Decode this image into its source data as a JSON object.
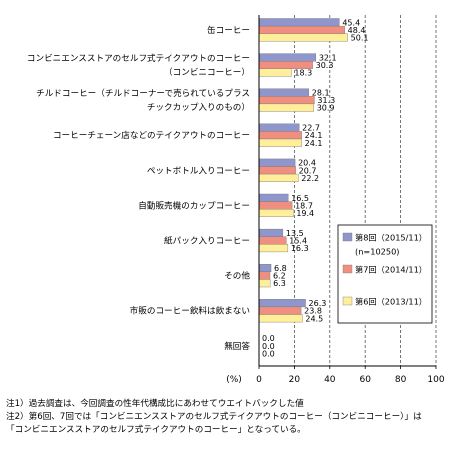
{
  "chart_data": {
    "type": "bar",
    "orientation": "horizontal",
    "categories": [
      [
        "缶コーヒー"
      ],
      [
        "コンビニエンスストアのセルフ式テイクアウトのコーヒー",
        "（コンビニコーヒー）"
      ],
      [
        "チルドコーヒー（チルドコーナーで売られているプラス",
        "チックカップ入りのもの）"
      ],
      [
        "コーヒーチェーン店などのテイクアウトのコーヒー"
      ],
      [
        "ペットボトル入りコーヒー"
      ],
      [
        "自動販売機のカップコーヒー"
      ],
      [
        "紙パック入りコーヒー"
      ],
      [
        "その他"
      ],
      [
        "市販のコーヒー飲料は飲まない"
      ],
      [
        "無回答"
      ]
    ],
    "series": [
      {
        "name": "第8回（2015/11）",
        "values": [
          45.4,
          32.1,
          28.1,
          22.7,
          20.4,
          16.5,
          13.5,
          6.8,
          26.3,
          0.0
        ]
      },
      {
        "name": "第7回（2014/11）",
        "values": [
          48.4,
          30.3,
          31.3,
          24.1,
          20.7,
          18.7,
          15.4,
          6.2,
          23.8,
          0.0
        ]
      },
      {
        "name": "第6回（2013/11）",
        "values": [
          50.1,
          18.3,
          30.9,
          24.1,
          22.2,
          19.4,
          16.3,
          6.3,
          24.5,
          0.0
        ]
      }
    ],
    "value_labels": [
      [
        "45.4",
        "48.4",
        "50.1"
      ],
      [
        "32.1",
        "30.3",
        "18.3"
      ],
      [
        "28.1",
        "31.3",
        "30.9"
      ],
      [
        "22.7",
        "24.1",
        "24.1"
      ],
      [
        "20.4",
        "20.7",
        "22.2"
      ],
      [
        "16.5",
        "18.7",
        "19.4"
      ],
      [
        "13.5",
        "15.4",
        "16.3"
      ],
      [
        "6.8",
        "6.2",
        "6.3"
      ],
      [
        "26.3",
        "23.8",
        "24.5"
      ],
      [
        "0.0",
        "0.0",
        "0.0"
      ]
    ],
    "series_colors": [
      "#8f96cc",
      "#f08f80",
      "#ffef9a"
    ],
    "legend": {
      "placement": "right",
      "items": [
        "第8回（2015/11）",
        "第7回（2014/11）",
        "第6回（2013/11）"
      ],
      "note": "(n=10250)"
    },
    "xlim": [
      0,
      100
    ],
    "xticks": [
      0,
      20,
      40,
      60,
      80,
      100
    ],
    "xticklabels": [
      "0",
      "20",
      "40",
      "60",
      "80",
      "100"
    ],
    "xunit": "(%)",
    "grid": "vertical dashed"
  },
  "notes": [
    "注1）過去調査は、今回調査の性年代構成比にあわせてウエイトバックした値",
    "注2）第6回、7回では「コンビニエンスストアのセルフ式テイクアウトのコーヒー（コンビニコーヒー）」は",
    "「コンビニエンスストアのセルフ式テイクアウトのコーヒー」となっている。"
  ]
}
